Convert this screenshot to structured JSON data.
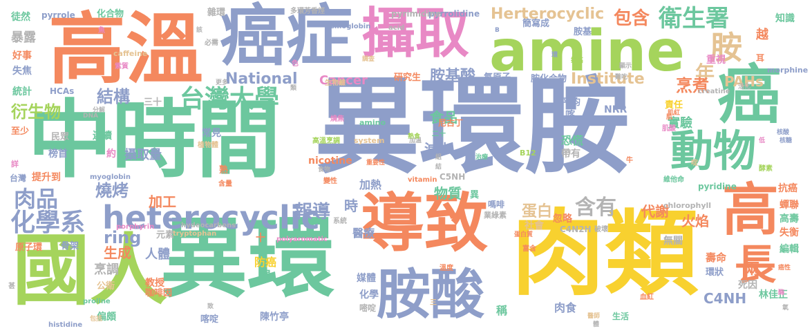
{
  "palette": {
    "orange": "#f4885e",
    "green": "#6cc79e",
    "blue": "#8e9ec9",
    "pink": "#e889c5",
    "yellowgreen": "#a5d45c",
    "yellow": "#f8d12f",
    "tan": "#e5c393",
    "gray": "#b3b3b3"
  },
  "words": [
    {
      "text": "異環胺",
      "color": "blue"
    },
    {
      "text": "中時間",
      "color": "green"
    },
    {
      "text": "國人",
      "color": "yellowgreen"
    },
    {
      "text": "異環",
      "color": "green"
    },
    {
      "text": "肉類",
      "color": "yellow"
    },
    {
      "text": "高溫",
      "color": "orange"
    },
    {
      "text": "癌症",
      "color": "blue"
    },
    {
      "text": "amine",
      "color": "yellowgreen"
    },
    {
      "text": "攝取",
      "color": "pink"
    },
    {
      "text": "導致",
      "color": "orange"
    },
    {
      "text": "胺酸",
      "color": "blue"
    },
    {
      "text": "癌",
      "color": "green"
    },
    {
      "text": "高",
      "color": "orange"
    },
    {
      "text": "長",
      "color": "orange"
    },
    {
      "text": "動物",
      "color": "green"
    },
    {
      "text": "衛生署",
      "color": "green"
    },
    {
      "text": "胺",
      "color": "tan"
    },
    {
      "text": "heterocyclic",
      "color": "blue"
    },
    {
      "text": "台灣大學",
      "color": "green"
    },
    {
      "text": "化學系",
      "color": "blue"
    },
    {
      "text": "肉品",
      "color": "blue"
    },
    {
      "text": "結構",
      "color": "blue"
    },
    {
      "text": "衍生物",
      "color": "yellowgreen"
    },
    {
      "text": "報導",
      "color": "blue"
    },
    {
      "text": "含有",
      "color": "gray"
    },
    {
      "text": "包含",
      "color": "orange"
    },
    {
      "text": "Herterocyclic",
      "color": "tan"
    },
    {
      "text": "National",
      "color": "blue"
    },
    {
      "text": "Institute",
      "color": "tan"
    },
    {
      "text": "Cancer",
      "color": "pink"
    },
    {
      "text": "PAHs",
      "color": "tan"
    },
    {
      "text": "年",
      "color": "tan"
    },
    {
      "text": "烹煮",
      "color": "orange"
    },
    {
      "text": "胺基酸",
      "color": "blue"
    },
    {
      "text": "ring",
      "color": "blue"
    },
    {
      "text": "燒烤",
      "color": "blue"
    },
    {
      "text": "攝取量",
      "color": "blue"
    },
    {
      "text": "人體",
      "color": "blue"
    },
    {
      "text": "物質",
      "color": "green"
    },
    {
      "text": "蛋白",
      "color": "tan"
    },
    {
      "text": "加工",
      "color": "orange"
    },
    {
      "text": "生成",
      "color": "orange"
    },
    {
      "text": "食品",
      "color": "green"
    },
    {
      "text": "減少",
      "color": "blue"
    },
    {
      "text": "代謝",
      "color": "orange"
    },
    {
      "text": "火焰",
      "color": "orange"
    },
    {
      "text": "實驗",
      "color": "green"
    },
    {
      "text": "恐慌",
      "color": "green"
    },
    {
      "text": "時",
      "color": "blue"
    },
    {
      "text": "醫療",
      "color": "blue"
    },
    {
      "text": "加熱",
      "color": "blue"
    },
    {
      "text": "暴露",
      "color": "gray"
    },
    {
      "text": "徒然",
      "color": "green"
    },
    {
      "text": "好事",
      "color": "orange"
    },
    {
      "text": "失焦",
      "color": "blue"
    },
    {
      "text": "統計",
      "color": "green"
    },
    {
      "text": "至少",
      "color": "orange"
    },
    {
      "text": "台灣",
      "color": "blue"
    },
    {
      "text": "提升到",
      "color": "orange"
    },
    {
      "text": "原子環",
      "color": "orange"
    },
    {
      "text": "骨架",
      "color": "blue"
    },
    {
      "text": "烹調",
      "color": "gray"
    },
    {
      "text": "公衛",
      "color": "tan"
    },
    {
      "text": "偏頗",
      "color": "green"
    },
    {
      "text": "教授",
      "color": "orange"
    },
    {
      "text": "咖啡因",
      "color": "orange"
    },
    {
      "text": "防癌",
      "color": "yellow"
    },
    {
      "text": "罹",
      "color": "green"
    },
    {
      "text": "陳竹亭",
      "color": "blue"
    },
    {
      "text": "媒體",
      "color": "blue"
    },
    {
      "text": "化學",
      "color": "blue"
    },
    {
      "text": "嘧啶",
      "color": "gray"
    },
    {
      "text": "C4NH",
      "color": "blue"
    },
    {
      "text": "林佳正",
      "color": "green"
    },
    {
      "text": "肉食",
      "color": "blue"
    },
    {
      "text": "稱",
      "color": "green"
    },
    {
      "text": "壽命",
      "color": "orange"
    },
    {
      "text": "環狀",
      "color": "blue"
    },
    {
      "text": "兩",
      "color": "orange"
    },
    {
      "text": "死因",
      "color": "gray"
    },
    {
      "text": "高壽",
      "color": "green"
    },
    {
      "text": "失衡",
      "color": "orange"
    },
    {
      "text": "編輯",
      "color": "green"
    },
    {
      "text": "抗癌",
      "color": "orange"
    },
    {
      "text": "蟬聯",
      "color": "orange"
    },
    {
      "text": "pyridine",
      "color": "green"
    },
    {
      "text": "無關",
      "color": "gray"
    },
    {
      "text": "社會",
      "color": "tan"
    },
    {
      "text": "忽略",
      "color": "orange"
    },
    {
      "text": "帶有",
      "color": "gray"
    },
    {
      "text": "常見",
      "color": "blue"
    },
    {
      "text": "連續",
      "color": "green"
    },
    {
      "text": "約",
      "color": "pink"
    },
    {
      "text": "榜首",
      "color": "blue"
    },
    {
      "text": "民眾",
      "color": "gray"
    },
    {
      "text": "三十",
      "color": "gray"
    },
    {
      "text": "nicotine",
      "color": "orange"
    },
    {
      "text": "研究生",
      "color": "orange"
    },
    {
      "text": "平均",
      "color": "blue"
    },
    {
      "text": "NRR",
      "color": "blue"
    },
    {
      "text": "責任",
      "color": "yellow"
    },
    {
      "text": "重視",
      "color": "pink"
    },
    {
      "text": "知識",
      "color": "green"
    },
    {
      "text": "越",
      "color": "orange"
    },
    {
      "text": "耳",
      "color": "orange"
    },
    {
      "text": "雜環",
      "color": "gray"
    },
    {
      "text": "化合物",
      "color": "green"
    },
    {
      "text": "pyrrole",
      "color": "blue"
    },
    {
      "text": "pyrrolidine",
      "color": "blue"
    },
    {
      "text": "hemoglobin",
      "color": "blue"
    },
    {
      "text": "caffeine",
      "color": "tan"
    },
    {
      "text": "HCAs",
      "color": "blue"
    },
    {
      "text": "myoglobin",
      "color": "blue"
    },
    {
      "text": "porphyrin",
      "color": "pink"
    },
    {
      "text": "tryptophan",
      "color": "tan"
    },
    {
      "text": "proline",
      "color": "green"
    },
    {
      "text": "histidine",
      "color": "blue"
    },
    {
      "text": "C5NH",
      "color": "gray"
    },
    {
      "text": "C4N2H",
      "color": "gray"
    },
    {
      "text": "元素",
      "color": "gray"
    },
    {
      "text": "胺基",
      "color": "blue"
    },
    {
      "text": "簡寫成",
      "color": "blue"
    },
    {
      "text": "胺化合物",
      "color": "blue"
    },
    {
      "text": "氮原子",
      "color": "blue"
    },
    {
      "text": "喀",
      "color": "blue"
    },
    {
      "text": "喀啶",
      "color": "blue"
    },
    {
      "text": "異",
      "color": "green"
    },
    {
      "text": "嗎啡",
      "color": "blue"
    },
    {
      "text": "業綠素",
      "color": "gray"
    },
    {
      "text": "morphine",
      "color": "blue"
    },
    {
      "text": "chlorophyll",
      "color": "gray"
    },
    {
      "text": "hydeocarbons",
      "color": "gray"
    },
    {
      "text": "polyaromatic",
      "color": "pink"
    },
    {
      "text": "amino",
      "color": "green"
    },
    {
      "text": "acid",
      "color": "gray"
    },
    {
      "text": "pyrimidine",
      "color": "gray"
    },
    {
      "text": "system",
      "color": "tan"
    },
    {
      "text": "vitamin",
      "color": "orange"
    },
    {
      "text": "B12",
      "color": "yellowgreen"
    },
    {
      "text": "creatine",
      "color": "gray"
    },
    {
      "text": "尼古丁",
      "color": "orange"
    },
    {
      "text": "生物鹼",
      "color": "tan"
    },
    {
      "text": "紫質",
      "color": "pink"
    },
    {
      "text": "植物體",
      "color": "tan"
    },
    {
      "text": "多環芳香烴",
      "color": "gray"
    },
    {
      "text": "生活",
      "color": "green"
    },
    {
      "text": "二十",
      "color": "green"
    },
    {
      "text": "十",
      "color": "orange"
    },
    {
      "text": "熟",
      "color": "orange"
    },
    {
      "text": "系統",
      "color": "gray"
    },
    {
      "text": "重要性",
      "color": "orange"
    },
    {
      "text": "加溫",
      "color": "gray"
    },
    {
      "text": "必需",
      "color": "gray"
    },
    {
      "text": "包括",
      "color": "tan"
    },
    {
      "text": "富含",
      "color": "orange"
    },
    {
      "text": "血紅",
      "color": "orange"
    },
    {
      "text": "肌紅",
      "color": "orange"
    },
    {
      "text": "酵素",
      "color": "yellowgreen"
    },
    {
      "text": "維他命",
      "color": "green"
    },
    {
      "text": "蛋白質",
      "color": "orange"
    },
    {
      "text": "破壞",
      "color": "gray"
    },
    {
      "text": "溫度",
      "color": "orange"
    },
    {
      "text": "含量",
      "color": "orange"
    },
    {
      "text": "分解",
      "color": "gray"
    },
    {
      "text": "變性",
      "color": "orange"
    },
    {
      "text": "高溫烹調",
      "color": "yellowgreen"
    },
    {
      "text": "色",
      "color": "pink"
    },
    {
      "text": "肌酸",
      "color": "pink"
    },
    {
      "text": "詳",
      "color": "pink"
    },
    {
      "text": "啶",
      "color": "tan"
    },
    {
      "text": "甚",
      "color": "gray"
    },
    {
      "text": "食物",
      "color": "gray"
    },
    {
      "text": "氧",
      "color": "gray"
    },
    {
      "text": "三",
      "color": "tan"
    },
    {
      "text": "DNA",
      "color": "gray"
    },
    {
      "text": "燒焦",
      "color": "pink"
    },
    {
      "text": "環",
      "color": "blue"
    },
    {
      "text": "提高",
      "color": "yellowgreen"
    },
    {
      "text": "顯示",
      "color": "gray"
    },
    {
      "text": "調查",
      "color": "tan"
    },
    {
      "text": "致",
      "color": "gray"
    },
    {
      "text": "難吃",
      "color": "gray"
    },
    {
      "text": "更多",
      "color": "gray"
    },
    {
      "text": "活化",
      "color": "gray"
    },
    {
      "text": "核酸",
      "color": "blue"
    },
    {
      "text": "結",
      "color": "gray"
    },
    {
      "text": "類",
      "color": "gray"
    },
    {
      "text": "魚",
      "color": "pink"
    },
    {
      "text": "B",
      "color": "blue"
    },
    {
      "text": "該",
      "color": "gray"
    },
    {
      "text": "熟食",
      "color": "yellowgreen"
    },
    {
      "text": "組",
      "color": "gray"
    },
    {
      "text": "治療",
      "color": "green"
    },
    {
      "text": "癌性",
      "color": "orange"
    },
    {
      "text": "酶",
      "color": "pink"
    },
    {
      "text": "牛",
      "color": "orange"
    },
    {
      "text": "醫師",
      "color": "tan"
    },
    {
      "text": "體",
      "color": "gray"
    },
    {
      "text": "核糖",
      "color": "blue"
    },
    {
      "text": "低",
      "color": "pink"
    },
    {
      "text": "肌",
      "color": "orange"
    }
  ]
}
